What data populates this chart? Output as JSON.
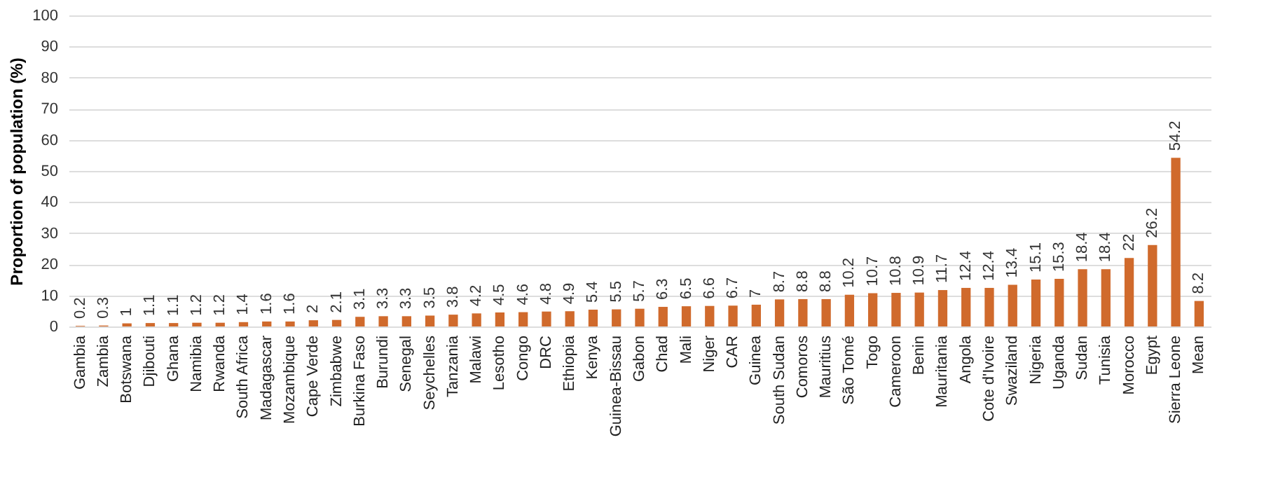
{
  "chart_data": {
    "type": "bar",
    "ylabel": "Proportion of population (%)",
    "categories": [
      "Gambia",
      "Zambia",
      "Botswana",
      "Djibouti",
      "Ghana",
      "Namibia",
      "Rwanda",
      "South Africa",
      "Madagascar",
      "Mozambique",
      "Cape Verde",
      "Zimbabwe",
      "Burkina Faso",
      "Burundi",
      "Senegal",
      "Seychelles",
      "Tanzania",
      "Malawi",
      "Lesotho",
      "Congo",
      "DRC",
      "Ethiopia",
      "Kenya",
      "Guinea-Bissau",
      "Gabon",
      "Chad",
      "Mali",
      "Niger",
      "CAR",
      "Guinea",
      "South Sudan",
      "Comoros",
      "Mauritius",
      "São Tomé",
      "Togo",
      "Cameroon",
      "Benin",
      "Mauritania",
      "Angola",
      "Cote d'Ivoire",
      "Swaziland",
      "Nigeria",
      "Uganda",
      "Sudan",
      "Tunisia",
      "Morocco",
      "Egypt",
      "Sierra Leone",
      "Mean"
    ],
    "values": [
      0.2,
      0.3,
      1,
      1.1,
      1.1,
      1.2,
      1.2,
      1.4,
      1.6,
      1.6,
      2,
      2.1,
      3.1,
      3.3,
      3.3,
      3.5,
      3.8,
      4.2,
      4.5,
      4.6,
      4.8,
      4.9,
      5.4,
      5.5,
      5.7,
      6.3,
      6.5,
      6.6,
      6.7,
      7,
      8.7,
      8.8,
      8.8,
      10.2,
      10.7,
      10.8,
      10.9,
      11.7,
      12.4,
      12.4,
      13.4,
      15.1,
      15.3,
      18.4,
      18.4,
      22,
      26.2,
      54.2,
      8.2
    ],
    "color": "#d06a2c",
    "ylim": [
      0,
      100
    ],
    "yticks": [
      0,
      10,
      20,
      30,
      40,
      50,
      60,
      70,
      80,
      90,
      100
    ],
    "grid": "y",
    "data_labels": true
  }
}
